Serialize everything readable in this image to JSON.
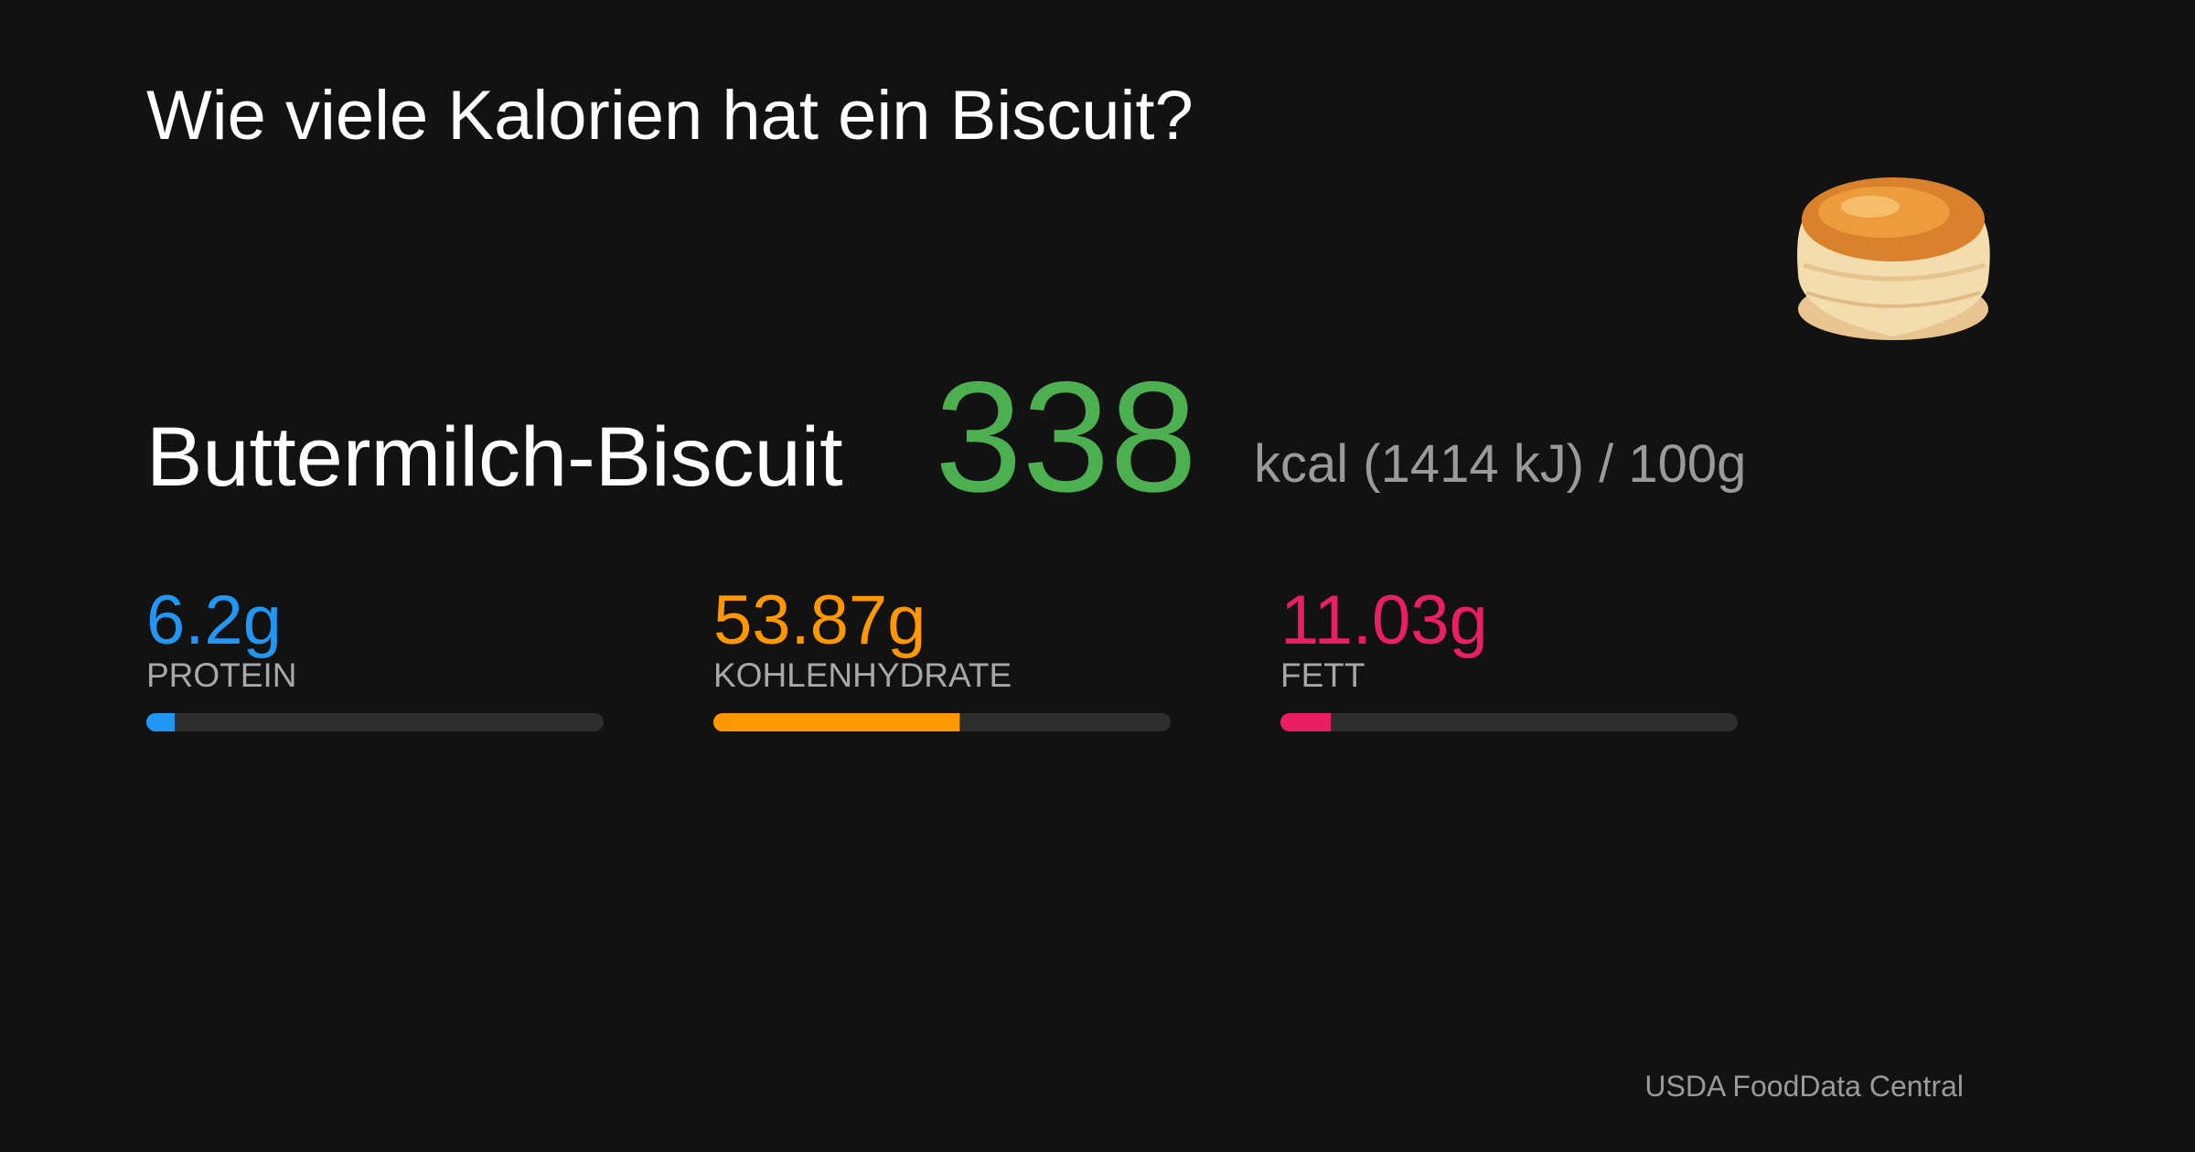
{
  "header": {
    "title": "Wie viele Kalorien hat ein Biscuit?"
  },
  "food": {
    "name": "Buttermilch-Biscuit",
    "calories": 338,
    "unit": "kcal (1414 kJ) / ",
    "per": {
      "value": 100,
      "label": "100g"
    }
  },
  "macros": [
    {
      "value": 6.2,
      "label": "6.2g",
      "name": "PROTEIN",
      "color": "#2196f3"
    },
    {
      "value": 53.87,
      "label": "53.87g",
      "name": "KOHLENHYDRATE",
      "color": "#ff9800"
    },
    {
      "value": 11.03,
      "label": "11.03g",
      "name": "FETT",
      "color": "#e91e63"
    }
  ],
  "footer": {
    "source": "USDA FoodData Central"
  }
}
